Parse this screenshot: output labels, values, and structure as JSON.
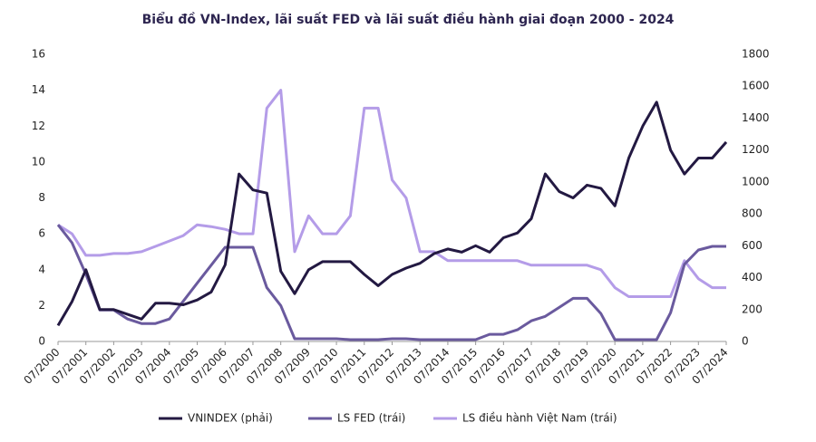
{
  "chart_data": {
    "type": "line",
    "title": "Biểu đồ VN-Index, lãi suất FED và lãi suất điều hành giai đoạn 2000 - 2024",
    "categories": [
      "07/2000",
      null,
      "07/2001",
      null,
      "07/2002",
      null,
      "07/2003",
      null,
      "07/2004",
      null,
      "07/2005",
      null,
      "07/2006",
      null,
      "07/2007",
      null,
      "07/2008",
      null,
      "07/2009",
      null,
      "07/2010",
      null,
      "07/2011",
      null,
      "07/2012",
      null,
      "07/2013",
      null,
      "07/2014",
      null,
      "07/2015",
      null,
      "07/2016",
      null,
      "07/2017",
      null,
      "07/2018",
      null,
      "07/2019",
      null,
      "07/2020",
      null,
      "07/2021",
      null,
      "07/2022",
      null,
      "07/2023",
      null,
      "07/2024"
    ],
    "series": [
      {
        "name": "VNINDEX (phải)",
        "color": "#231942",
        "axis": "y2",
        "values": [
          100,
          250,
          450,
          200,
          200,
          170,
          140,
          240,
          240,
          230,
          260,
          310,
          480,
          1050,
          950,
          930,
          440,
          300,
          450,
          500,
          500,
          500,
          420,
          350,
          420,
          460,
          490,
          550,
          580,
          560,
          600,
          560,
          650,
          680,
          770,
          1050,
          940,
          900,
          980,
          960,
          850,
          1150,
          1350,
          1500,
          1200,
          1050,
          1150,
          1150,
          1250
        ]
      },
      {
        "name": "LS FED (trái)",
        "color": "#6a5a9e",
        "values": [
          6.5,
          5.5,
          3.75,
          1.75,
          1.75,
          1.25,
          1.0,
          1.0,
          1.25,
          2.25,
          3.25,
          4.25,
          5.25,
          5.25,
          5.25,
          3.0,
          2.0,
          0.15,
          0.15,
          0.15,
          0.15,
          0.1,
          0.1,
          0.1,
          0.15,
          0.15,
          0.1,
          0.1,
          0.1,
          0.1,
          0.1,
          0.4,
          0.4,
          0.65,
          1.15,
          1.4,
          1.9,
          2.4,
          2.4,
          1.55,
          0.1,
          0.1,
          0.1,
          0.1,
          1.6,
          4.3,
          5.1,
          5.3,
          5.3
        ]
      },
      {
        "name": "LS điều hành Việt Nam (trái)",
        "color": "#b49ce8",
        "values": [
          6.5,
          6.0,
          4.8,
          4.8,
          4.9,
          4.9,
          5.0,
          5.3,
          5.6,
          5.9,
          6.5,
          6.4,
          6.25,
          6.0,
          6.0,
          13.0,
          14.0,
          5.0,
          7.0,
          6.0,
          6.0,
          7.0,
          13.0,
          13.0,
          9.0,
          8.0,
          5.0,
          5.0,
          4.5,
          4.5,
          4.5,
          4.5,
          4.5,
          4.5,
          4.25,
          4.25,
          4.25,
          4.25,
          4.25,
          4.0,
          3.0,
          2.5,
          2.5,
          2.5,
          2.5,
          4.5,
          3.5,
          3.0,
          3.0
        ]
      }
    ],
    "ylim": [
      0,
      16
    ],
    "yticks": [
      0,
      2,
      4,
      6,
      8,
      10,
      12,
      14,
      16
    ],
    "y2lim": [
      0,
      1800
    ],
    "y2ticks": [
      0,
      200,
      400,
      600,
      800,
      1000,
      1200,
      1400,
      1600,
      1800
    ],
    "legend": "bottom"
  }
}
